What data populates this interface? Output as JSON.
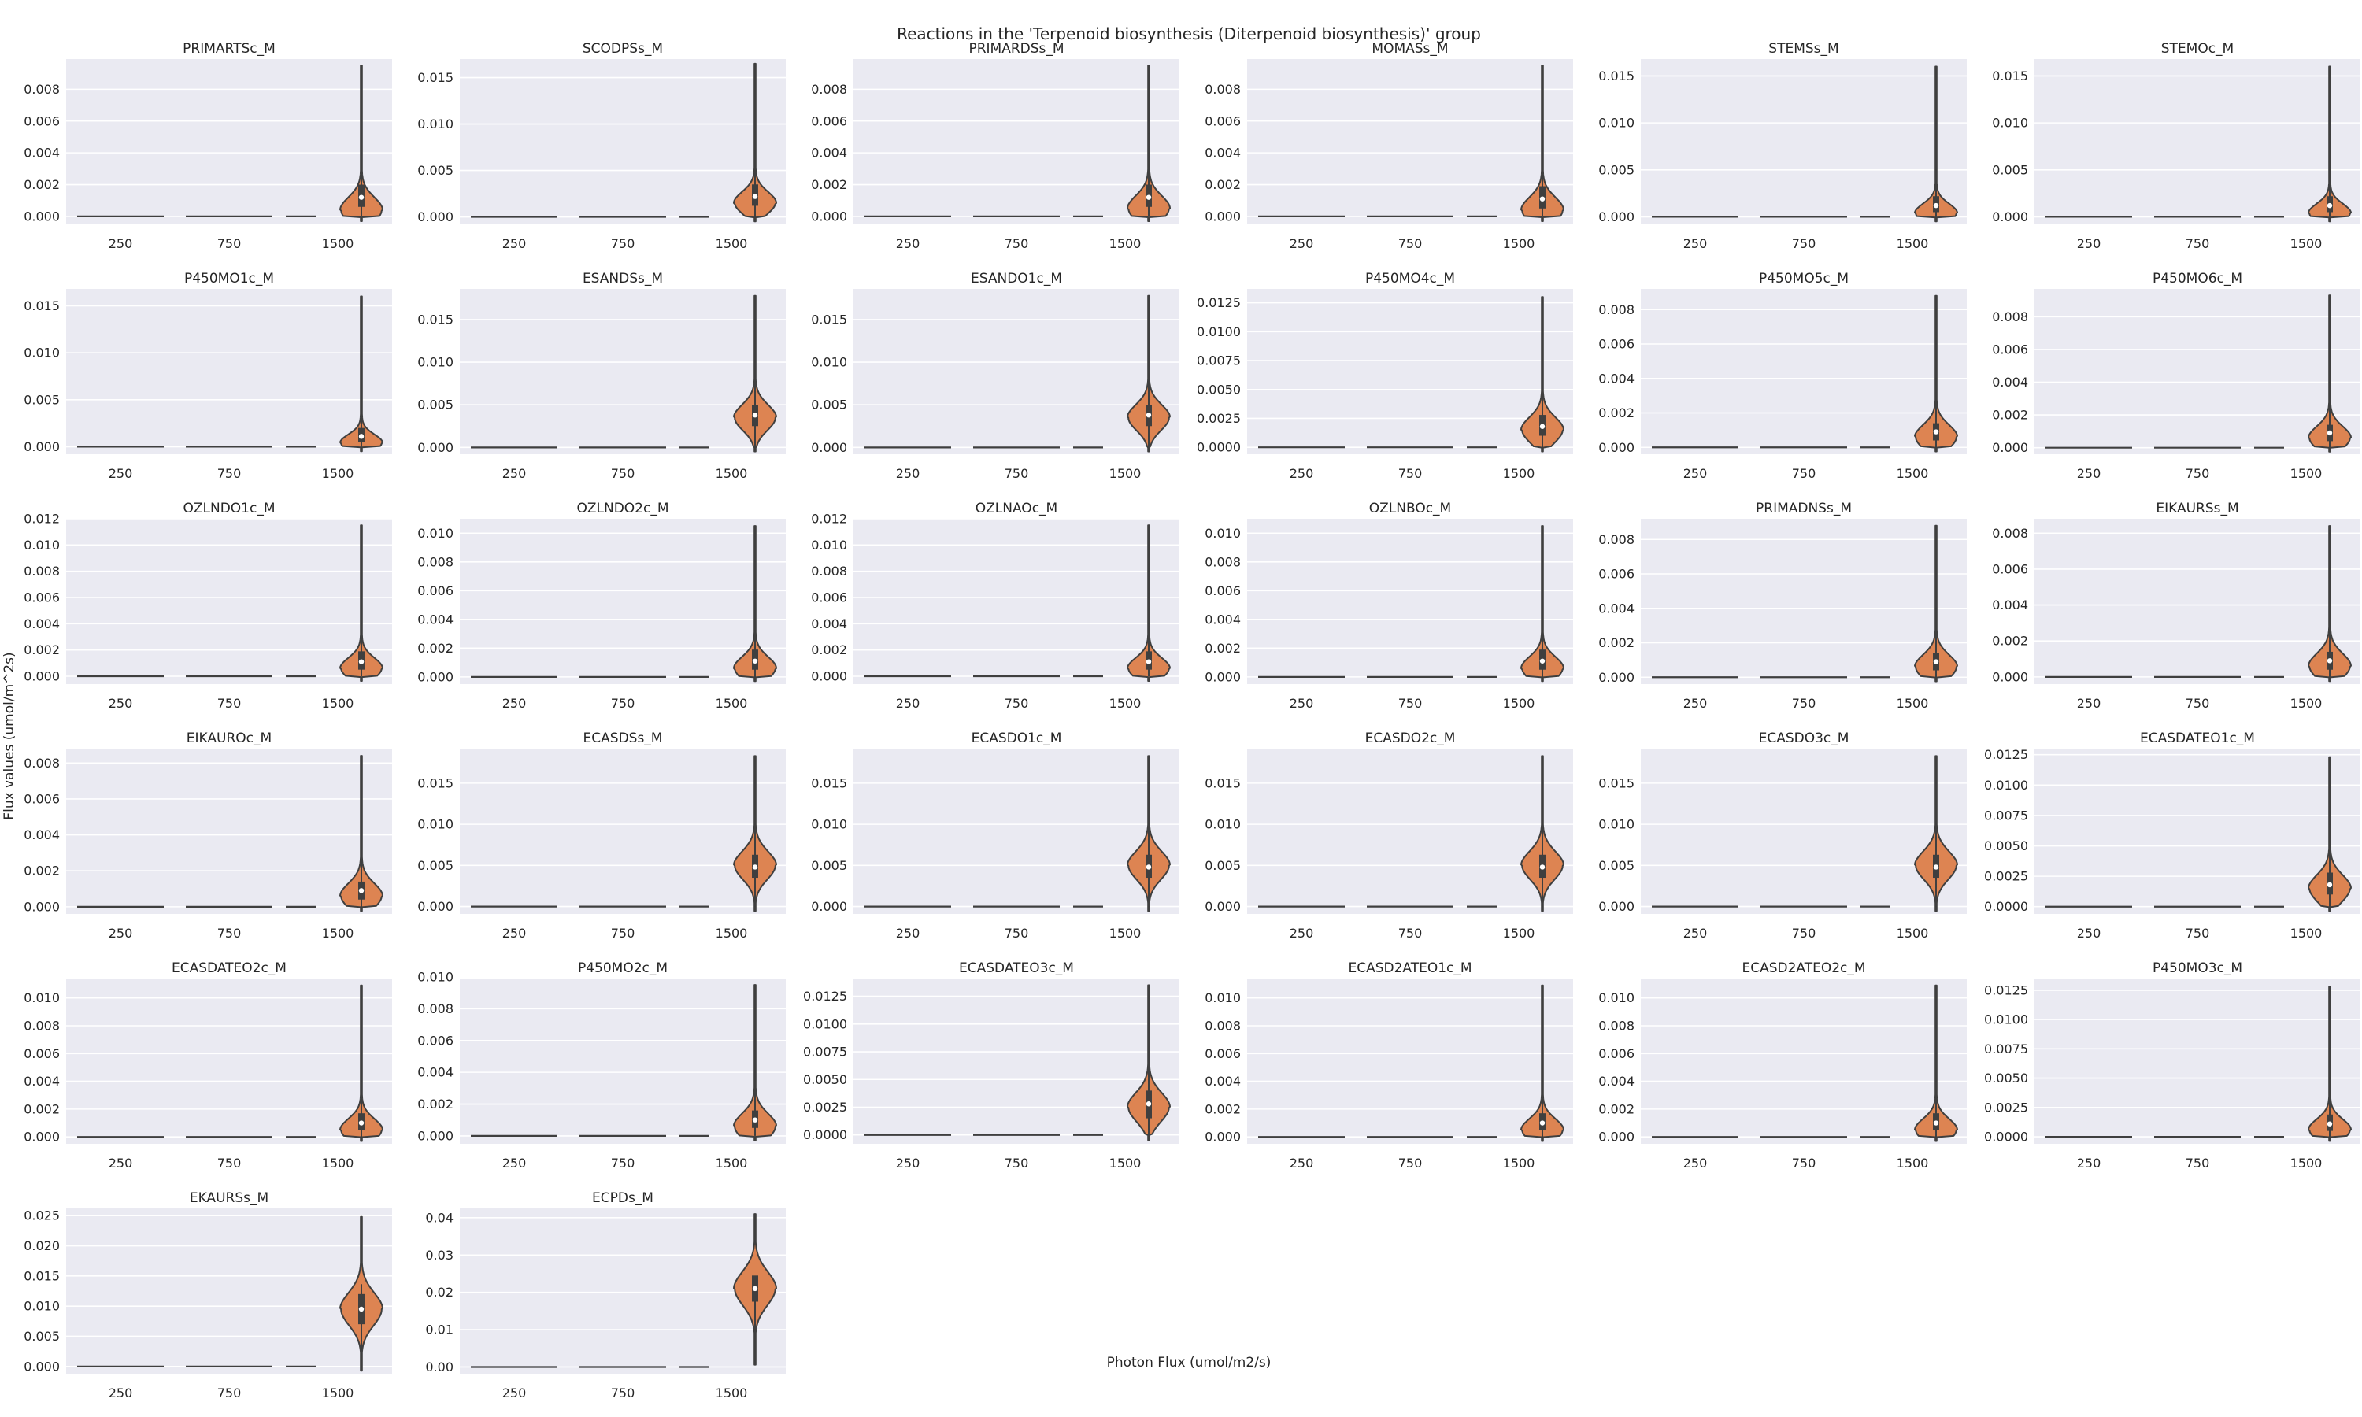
{
  "chart_data": {
    "type": "violin",
    "title": "Reactions in the 'Terpenoid biosynthesis (Diterpenoid biosynthesis)' group",
    "xlabel": "Photon Flux (umol/m2/s)",
    "ylabel": "Flux values (umol/m^2s)",
    "categories": [
      "250",
      "750",
      "1500"
    ],
    "grid": true,
    "colors": {
      "background": "#eaeaf2",
      "grid": "#ffffff",
      "violin_1500": "#dd8452",
      "edge": "#3f3f3f",
      "text": "#262626"
    },
    "panels": [
      {
        "name": "PRIMARTSc_M",
        "ylim": [
          -0.0005,
          0.0099
        ],
        "yticks": [
          "0.000",
          "0.002",
          "0.004",
          "0.006",
          "0.008"
        ],
        "max": 0.0095,
        "median": 0.0012,
        "mode": 0.0004,
        "q1": 0.0006,
        "q3": 0.002,
        "min": 0,
        "sd": 0.0008
      },
      {
        "name": "SCODPSs_M",
        "ylim": [
          -0.0008,
          0.017
        ],
        "yticks": [
          "0.000",
          "0.005",
          "0.010",
          "0.015"
        ],
        "max": 0.0165,
        "median": 0.0022,
        "mode": 0.0015,
        "q1": 0.0012,
        "q3": 0.0035,
        "min": 0,
        "sd": 0.0012
      },
      {
        "name": "PRIMARDSs_M",
        "ylim": [
          -0.0005,
          0.0099
        ],
        "yticks": [
          "0.000",
          "0.002",
          "0.004",
          "0.006",
          "0.008"
        ],
        "max": 0.0095,
        "median": 0.0012,
        "mode": 0.0005,
        "q1": 0.0006,
        "q3": 0.002,
        "min": 0,
        "sd": 0.0008
      },
      {
        "name": "MOMASs_M",
        "ylim": [
          -0.0005,
          0.0099
        ],
        "yticks": [
          "0.000",
          "0.002",
          "0.004",
          "0.006",
          "0.008"
        ],
        "max": 0.0095,
        "median": 0.0011,
        "mode": 0.0004,
        "q1": 0.0005,
        "q3": 0.0019,
        "min": 0,
        "sd": 0.0008
      },
      {
        "name": "STEMSs_M",
        "ylim": [
          -0.0008,
          0.0168
        ],
        "yticks": [
          "0.000",
          "0.005",
          "0.010",
          "0.015"
        ],
        "max": 0.016,
        "median": 0.0012,
        "mode": 0.0004,
        "q1": 0.0005,
        "q3": 0.0022,
        "min": 0,
        "sd": 0.001
      },
      {
        "name": "STEMOc_M",
        "ylim": [
          -0.0008,
          0.0168
        ],
        "yticks": [
          "0.000",
          "0.005",
          "0.010",
          "0.015"
        ],
        "max": 0.016,
        "median": 0.0012,
        "mode": 0.0004,
        "q1": 0.0005,
        "q3": 0.0022,
        "min": 0,
        "sd": 0.001
      },
      {
        "name": "P450MO1c_M",
        "ylim": [
          -0.0008,
          0.0168
        ],
        "yticks": [
          "0.000",
          "0.005",
          "0.010",
          "0.015"
        ],
        "max": 0.016,
        "median": 0.0011,
        "mode": 0.0004,
        "q1": 0.0005,
        "q3": 0.002,
        "min": 0,
        "sd": 0.0009
      },
      {
        "name": "ESANDSs_M",
        "ylim": [
          -0.0008,
          0.0186
        ],
        "yticks": [
          "0.000",
          "0.005",
          "0.010",
          "0.015"
        ],
        "max": 0.0178,
        "median": 0.0038,
        "mode": 0.0035,
        "q1": 0.0025,
        "q3": 0.005,
        "min": 0,
        "sd": 0.0015
      },
      {
        "name": "ESANDO1c_M",
        "ylim": [
          -0.0008,
          0.0186
        ],
        "yticks": [
          "0.000",
          "0.005",
          "0.010",
          "0.015"
        ],
        "max": 0.0178,
        "median": 0.0038,
        "mode": 0.0035,
        "q1": 0.0025,
        "q3": 0.005,
        "min": 0,
        "sd": 0.0015
      },
      {
        "name": "P450MO4c_M",
        "ylim": [
          -0.0006,
          0.0137
        ],
        "yticks": [
          "0.0000",
          "0.0025",
          "0.0050",
          "0.0075",
          "0.0100",
          "0.0125"
        ],
        "max": 0.013,
        "median": 0.0018,
        "mode": 0.0015,
        "q1": 0.001,
        "q3": 0.0028,
        "min": 0,
        "sd": 0.0011
      },
      {
        "name": "P450MO5c_M",
        "ylim": [
          -0.0004,
          0.0092
        ],
        "yticks": [
          "0.000",
          "0.002",
          "0.004",
          "0.006",
          "0.008"
        ],
        "max": 0.0088,
        "median": 0.0009,
        "mode": 0.0006,
        "q1": 0.0004,
        "q3": 0.0014,
        "min": 0,
        "sd": 0.0007
      },
      {
        "name": "P450MO6c_M",
        "ylim": [
          -0.0004,
          0.0097
        ],
        "yticks": [
          "0.000",
          "0.002",
          "0.004",
          "0.006",
          "0.008"
        ],
        "max": 0.0093,
        "median": 0.0009,
        "mode": 0.0006,
        "q1": 0.0004,
        "q3": 0.0014,
        "min": 0,
        "sd": 0.0007
      },
      {
        "name": "OZLNDO1c_M",
        "ylim": [
          -0.0006,
          0.012
        ],
        "yticks": [
          "0.000",
          "0.002",
          "0.004",
          "0.006",
          "0.008",
          "0.010",
          "0.012"
        ],
        "max": 0.0115,
        "median": 0.0011,
        "mode": 0.0006,
        "q1": 0.0005,
        "q3": 0.0019,
        "min": 0,
        "sd": 0.0008
      },
      {
        "name": "OZLNDO2c_M",
        "ylim": [
          -0.0005,
          0.011
        ],
        "yticks": [
          "0.000",
          "0.002",
          "0.004",
          "0.006",
          "0.008",
          "0.010"
        ],
        "max": 0.0105,
        "median": 0.0011,
        "mode": 0.0006,
        "q1": 0.0005,
        "q3": 0.0019,
        "min": 0,
        "sd": 0.0008
      },
      {
        "name": "OZLNAOc_M",
        "ylim": [
          -0.0006,
          0.012
        ],
        "yticks": [
          "0.000",
          "0.002",
          "0.004",
          "0.006",
          "0.008",
          "0.010",
          "0.012"
        ],
        "max": 0.0115,
        "median": 0.0011,
        "mode": 0.0006,
        "q1": 0.0005,
        "q3": 0.0019,
        "min": 0,
        "sd": 0.0008
      },
      {
        "name": "OZLNBOc_M",
        "ylim": [
          -0.0005,
          0.011
        ],
        "yticks": [
          "0.000",
          "0.002",
          "0.004",
          "0.006",
          "0.008",
          "0.010"
        ],
        "max": 0.0105,
        "median": 0.0011,
        "mode": 0.0006,
        "q1": 0.0005,
        "q3": 0.0019,
        "min": 0,
        "sd": 0.0008
      },
      {
        "name": "PRIMADNSs_M",
        "ylim": [
          -0.0004,
          0.0092
        ],
        "yticks": [
          "0.000",
          "0.002",
          "0.004",
          "0.006",
          "0.008"
        ],
        "max": 0.0088,
        "median": 0.0009,
        "mode": 0.0006,
        "q1": 0.0004,
        "q3": 0.0014,
        "min": 0,
        "sd": 0.0007
      },
      {
        "name": "EIKAURSs_M",
        "ylim": [
          -0.0004,
          0.0088
        ],
        "yticks": [
          "0.000",
          "0.002",
          "0.004",
          "0.006",
          "0.008"
        ],
        "max": 0.0084,
        "median": 0.0009,
        "mode": 0.0006,
        "q1": 0.0004,
        "q3": 0.0014,
        "min": 0,
        "sd": 0.0007
      },
      {
        "name": "EIKAUROc_M",
        "ylim": [
          -0.0004,
          0.0088
        ],
        "yticks": [
          "0.000",
          "0.002",
          "0.004",
          "0.006",
          "0.008"
        ],
        "max": 0.0084,
        "median": 0.0009,
        "mode": 0.0006,
        "q1": 0.0004,
        "q3": 0.0014,
        "min": 0,
        "sd": 0.0007
      },
      {
        "name": "ECASDSs_M",
        "ylim": [
          -0.0009,
          0.0192
        ],
        "yticks": [
          "0.000",
          "0.005",
          "0.010",
          "0.015"
        ],
        "max": 0.0183,
        "median": 0.0048,
        "mode": 0.005,
        "q1": 0.0035,
        "q3": 0.0063,
        "min": 0,
        "sd": 0.0017
      },
      {
        "name": "ECASDO1c_M",
        "ylim": [
          -0.0009,
          0.0192
        ],
        "yticks": [
          "0.000",
          "0.005",
          "0.010",
          "0.015"
        ],
        "max": 0.0183,
        "median": 0.0048,
        "mode": 0.005,
        "q1": 0.0035,
        "q3": 0.0063,
        "min": 0,
        "sd": 0.0017
      },
      {
        "name": "ECASDO2c_M",
        "ylim": [
          -0.0009,
          0.0192
        ],
        "yticks": [
          "0.000",
          "0.005",
          "0.010",
          "0.015"
        ],
        "max": 0.0183,
        "median": 0.0048,
        "mode": 0.005,
        "q1": 0.0035,
        "q3": 0.0063,
        "min": 0,
        "sd": 0.0017
      },
      {
        "name": "ECASDO3c_M",
        "ylim": [
          -0.0009,
          0.0192
        ],
        "yticks": [
          "0.000",
          "0.005",
          "0.010",
          "0.015"
        ],
        "max": 0.0183,
        "median": 0.0048,
        "mode": 0.005,
        "q1": 0.0035,
        "q3": 0.0063,
        "min": 0,
        "sd": 0.0017
      },
      {
        "name": "ECASDATEO1c_M",
        "ylim": [
          -0.0006,
          0.013
        ],
        "yticks": [
          "0.0000",
          "0.0025",
          "0.0050",
          "0.0075",
          "0.0100",
          "0.0125"
        ],
        "max": 0.0123,
        "median": 0.0018,
        "mode": 0.0015,
        "q1": 0.001,
        "q3": 0.0028,
        "min": 0,
        "sd": 0.0011
      },
      {
        "name": "ECASDATEO2c_M",
        "ylim": [
          -0.0005,
          0.0114
        ],
        "yticks": [
          "0.000",
          "0.002",
          "0.004",
          "0.006",
          "0.008",
          "0.010"
        ],
        "max": 0.0109,
        "median": 0.001,
        "mode": 0.0005,
        "q1": 0.0005,
        "q3": 0.0017,
        "min": 0,
        "sd": 0.0008
      },
      {
        "name": "P450MO2c_M",
        "ylim": [
          -0.0005,
          0.0099
        ],
        "yticks": [
          "0.000",
          "0.002",
          "0.004",
          "0.006",
          "0.008",
          "0.010"
        ],
        "max": 0.0095,
        "median": 0.001,
        "mode": 0.0006,
        "q1": 0.0005,
        "q3": 0.0016,
        "min": 0,
        "sd": 0.0008
      },
      {
        "name": "ECASDATEO3c_M",
        "ylim": [
          -0.0008,
          0.0141
        ],
        "yticks": [
          "0.0000",
          "0.0025",
          "0.0050",
          "0.0075",
          "0.0100",
          "0.0125"
        ],
        "max": 0.0135,
        "median": 0.0028,
        "mode": 0.0025,
        "q1": 0.0015,
        "q3": 0.004,
        "min": 0,
        "sd": 0.0013
      },
      {
        "name": "ECASD2ATEO1c_M",
        "ylim": [
          -0.0005,
          0.0114
        ],
        "yticks": [
          "0.000",
          "0.002",
          "0.004",
          "0.006",
          "0.008",
          "0.010"
        ],
        "max": 0.0109,
        "median": 0.001,
        "mode": 0.0005,
        "q1": 0.0005,
        "q3": 0.0017,
        "min": 0,
        "sd": 0.0008
      },
      {
        "name": "ECASD2ATEO2c_M",
        "ylim": [
          -0.0005,
          0.0114
        ],
        "yticks": [
          "0.000",
          "0.002",
          "0.004",
          "0.006",
          "0.008",
          "0.010"
        ],
        "max": 0.0109,
        "median": 0.001,
        "mode": 0.0005,
        "q1": 0.0005,
        "q3": 0.0017,
        "min": 0,
        "sd": 0.0008
      },
      {
        "name": "P450MO3c_M",
        "ylim": [
          -0.0006,
          0.0135
        ],
        "yticks": [
          "0.0000",
          "0.0025",
          "0.0050",
          "0.0075",
          "0.0100",
          "0.0125"
        ],
        "max": 0.0128,
        "median": 0.0011,
        "mode": 0.0006,
        "q1": 0.0005,
        "q3": 0.0019,
        "min": 0,
        "sd": 0.0009
      },
      {
        "name": "EKAURSs_M",
        "ylim": [
          -0.0012,
          0.0262
        ],
        "yticks": [
          "0.000",
          "0.005",
          "0.010",
          "0.015",
          "0.020",
          "0.025"
        ],
        "max": 0.0248,
        "median": 0.0095,
        "mode": 0.0095,
        "q1": 0.007,
        "q3": 0.012,
        "min": 0.001,
        "sd": 0.0027
      },
      {
        "name": "ECPDs_M",
        "ylim": [
          -0.0018,
          0.0425
        ],
        "yticks": [
          "0.00",
          "0.01",
          "0.02",
          "0.03",
          "0.04"
        ],
        "max": 0.041,
        "median": 0.021,
        "mode": 0.021,
        "q1": 0.0175,
        "q3": 0.0245,
        "min": 0.006,
        "sd": 0.0045
      }
    ]
  }
}
